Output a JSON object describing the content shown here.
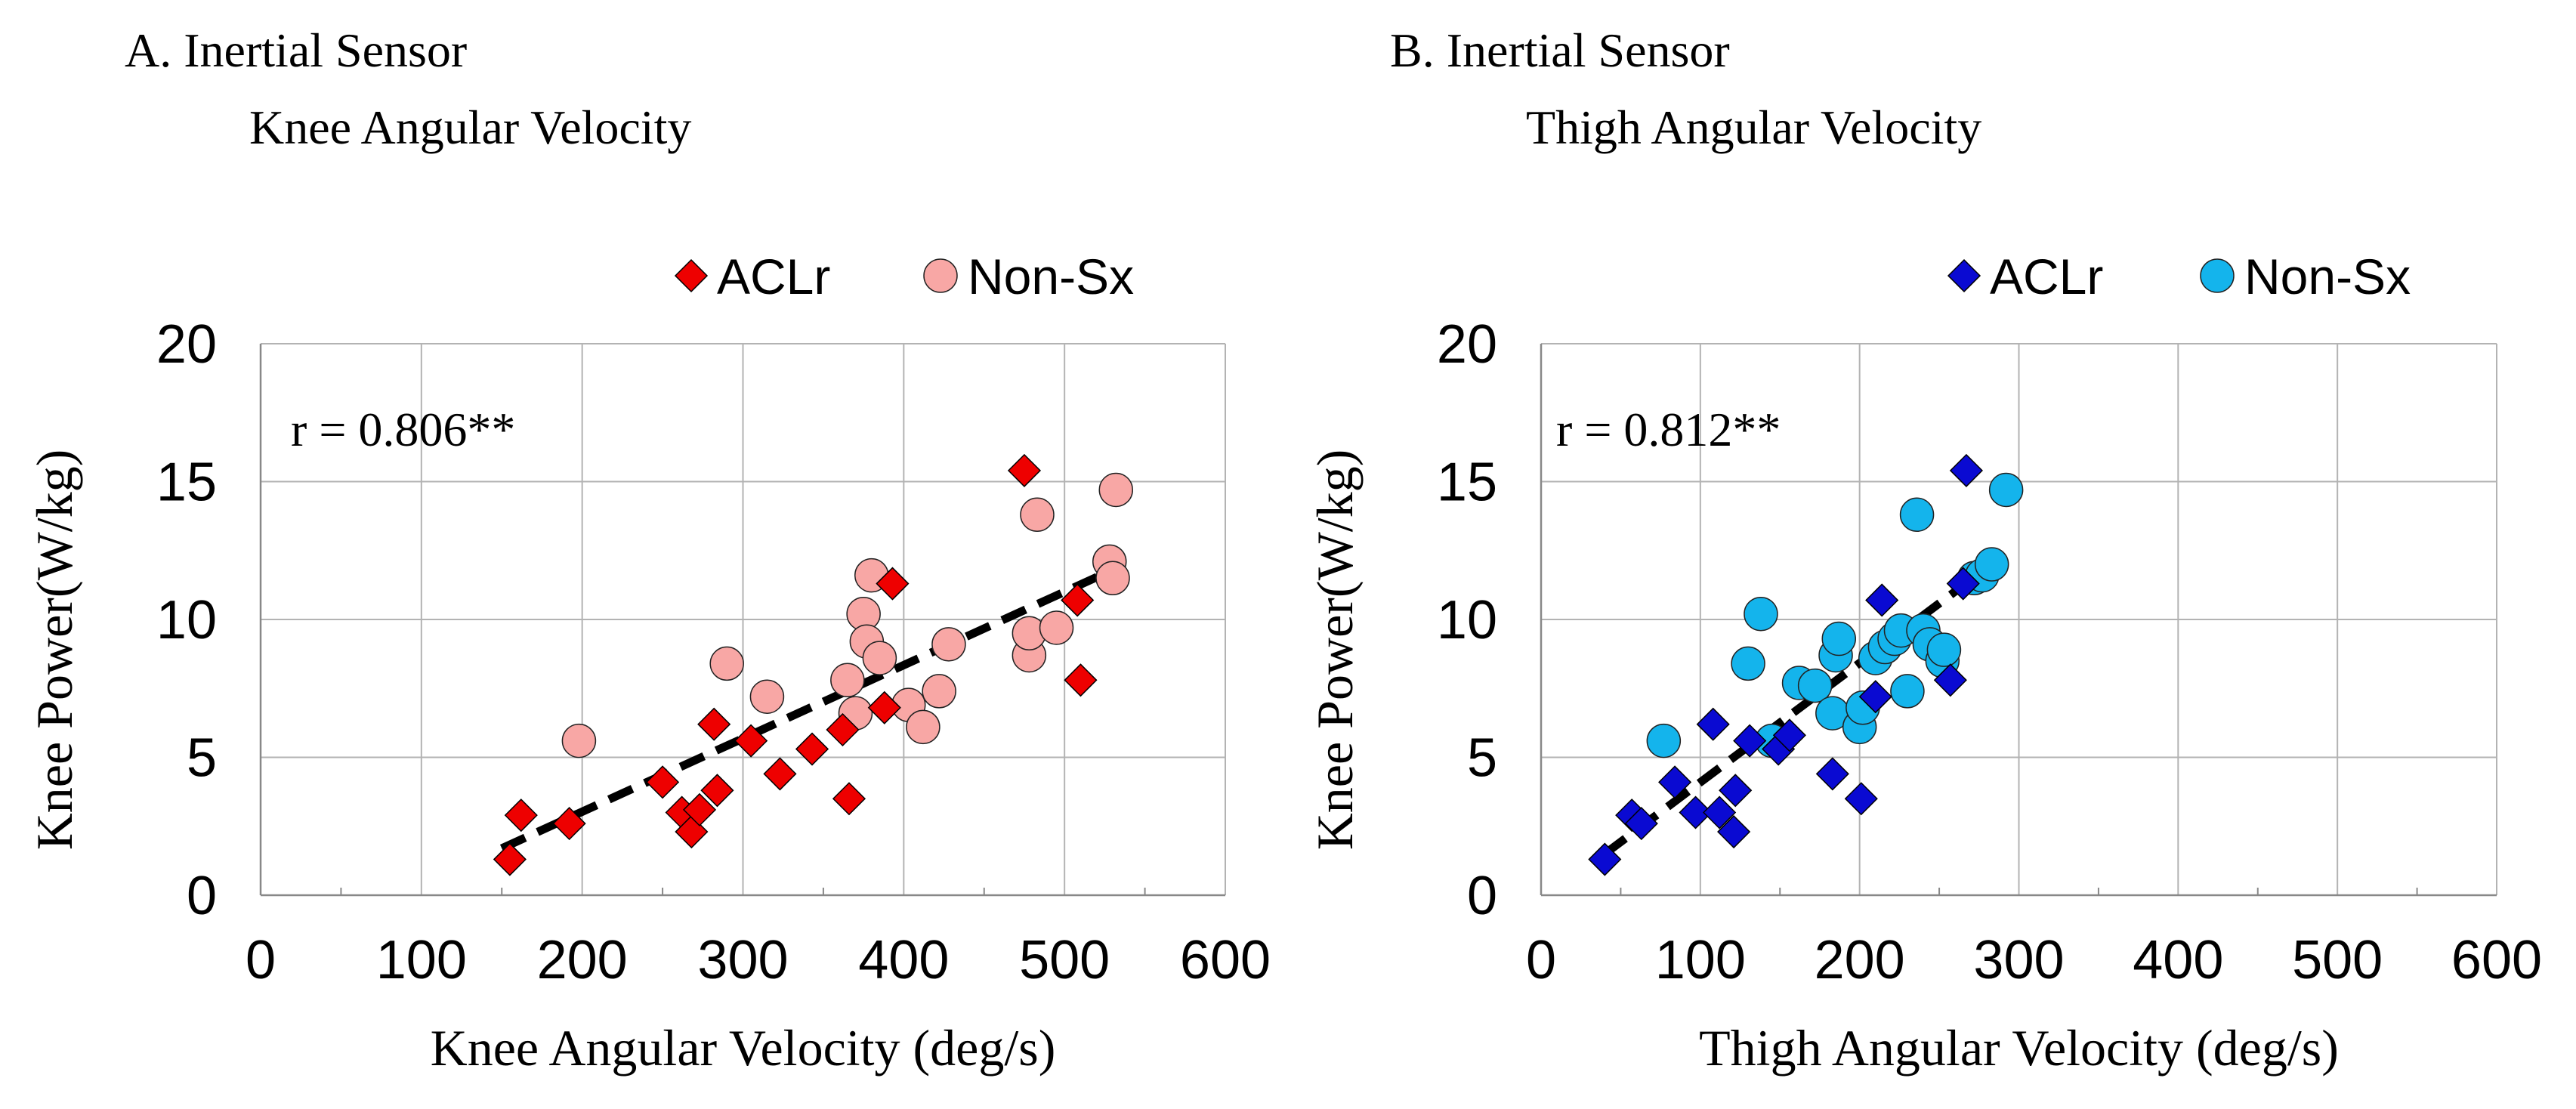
{
  "figure": {
    "panels": [
      {
        "letter": "A.",
        "title_line1": "A. Inertial Sensor",
        "title_line2": "Knee Angular Velocity",
        "annotation": "r = 0.806**"
      },
      {
        "letter": "B.",
        "title_line1": "B. Inertial Sensor",
        "title_line2": "Thigh Angular Velocity",
        "annotation": "r = 0.812**"
      }
    ]
  },
  "colors": {
    "panelA_aclr": "#ee0000",
    "panelA_nonsx": "#f8a7a5",
    "panelB_aclr": "#0a0ad2",
    "panelB_nonsx": "#14b4ec",
    "trend": "#000000",
    "grid": "#b3b3b3"
  },
  "chart_data": [
    {
      "type": "scatter",
      "title": "A. Inertial Sensor Knee Angular Velocity",
      "xlabel": "Knee Angular Velocity (deg/s)",
      "ylabel": "Knee Power(W/kg)",
      "xlim": [
        0,
        600
      ],
      "ylim": [
        0,
        20
      ],
      "xticks": [
        "0",
        "100",
        "200",
        "300",
        "400",
        "500",
        "600"
      ],
      "yticks": [
        "0",
        "5",
        "10",
        "15",
        "20"
      ],
      "grid": true,
      "legend_position": "top-right",
      "annotation": "r = 0.806**",
      "series": [
        {
          "name": "ACLr",
          "marker": "diamond",
          "points": [
            [
              155,
              1.3
            ],
            [
              162,
              2.9
            ],
            [
              192,
              2.6
            ],
            [
              250,
              4.1
            ],
            [
              262,
              3.0
            ],
            [
              268,
              2.3
            ],
            [
              273,
              3.1
            ],
            [
              282,
              6.2
            ],
            [
              284,
              3.8
            ],
            [
              305,
              5.6
            ],
            [
              323,
              4.4
            ],
            [
              343,
              5.3
            ],
            [
              362,
              6.0
            ],
            [
              366,
              3.5
            ],
            [
              388,
              6.8
            ],
            [
              393,
              11.3
            ],
            [
              475,
              15.4
            ],
            [
              508,
              10.7
            ],
            [
              510,
              7.8
            ]
          ]
        },
        {
          "name": "Non-Sx",
          "marker": "circle",
          "points": [
            [
              198,
              5.6
            ],
            [
              290,
              8.4
            ],
            [
              315,
              7.2
            ],
            [
              365,
              7.8
            ],
            [
              370,
              6.6
            ],
            [
              375,
              10.2
            ],
            [
              377,
              9.2
            ],
            [
              380,
              11.6
            ],
            [
              385,
              8.6
            ],
            [
              403,
              6.9
            ],
            [
              412,
              6.1
            ],
            [
              422,
              7.4
            ],
            [
              428,
              9.1
            ],
            [
              478,
              8.7
            ],
            [
              478,
              9.5
            ],
            [
              483,
              13.8
            ],
            [
              495,
              9.7
            ],
            [
              528,
              12.1
            ],
            [
              530,
              11.5
            ],
            [
              532,
              14.7
            ]
          ]
        }
      ],
      "trendline": {
        "x": [
          150,
          530
        ],
        "y": [
          1.7,
          11.8
        ]
      }
    },
    {
      "type": "scatter",
      "title": "B. Inertial Sensor Thigh Angular Velocity",
      "xlabel": "Thigh Angular Velocity (deg/s)",
      "ylabel": "Knee Power(W/kg)",
      "xlim": [
        0,
        600
      ],
      "ylim": [
        0,
        20
      ],
      "xticks": [
        "0",
        "100",
        "200",
        "300",
        "400",
        "500",
        "600"
      ],
      "yticks": [
        "0",
        "5",
        "10",
        "15",
        "20"
      ],
      "grid": true,
      "legend_position": "top-right",
      "annotation": "r = 0.812**",
      "series": [
        {
          "name": "ACLr",
          "marker": "diamond",
          "points": [
            [
              40,
              1.3
            ],
            [
              57,
              2.9
            ],
            [
              63,
              2.6
            ],
            [
              84,
              4.1
            ],
            [
              97,
              3.0
            ],
            [
              108,
              6.2
            ],
            [
              112,
              3.0
            ],
            [
              121,
              2.3
            ],
            [
              122,
              3.8
            ],
            [
              131,
              5.6
            ],
            [
              149,
              5.3
            ],
            [
              156,
              5.8
            ],
            [
              183,
              4.4
            ],
            [
              201,
              3.5
            ],
            [
              210,
              7.2
            ],
            [
              214,
              10.7
            ],
            [
              257,
              7.8
            ],
            [
              265,
              11.3
            ],
            [
              267,
              15.4
            ]
          ]
        },
        {
          "name": "Non-Sx",
          "marker": "circle",
          "points": [
            [
              77,
              5.6
            ],
            [
              130,
              8.4
            ],
            [
              138,
              10.2
            ],
            [
              145,
              5.6
            ],
            [
              162,
              7.7
            ],
            [
              172,
              7.6
            ],
            [
              183,
              6.6
            ],
            [
              185,
              8.7
            ],
            [
              187,
              9.3
            ],
            [
              200,
              6.1
            ],
            [
              202,
              6.8
            ],
            [
              210,
              8.6
            ],
            [
              216,
              9.0
            ],
            [
              222,
              9.3
            ],
            [
              226,
              9.6
            ],
            [
              230,
              7.4
            ],
            [
              236,
              13.8
            ],
            [
              240,
              9.6
            ],
            [
              244,
              9.1
            ],
            [
              252,
              8.5
            ],
            [
              253,
              8.9
            ],
            [
              272,
              11.5
            ],
            [
              277,
              11.6
            ],
            [
              283,
              12.0
            ],
            [
              292,
              14.7
            ]
          ]
        }
      ],
      "trendline": {
        "x": [
          40,
          292
        ],
        "y": [
          1.5,
          12.4
        ]
      }
    }
  ]
}
